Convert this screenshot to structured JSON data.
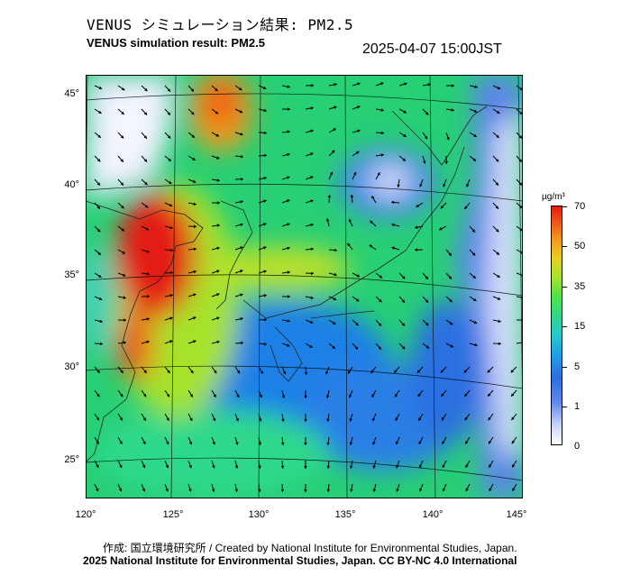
{
  "header": {
    "title_ja": "VENUS シミュレーション結果: PM2.5",
    "title_en": "VENUS simulation result: PM2.5",
    "datetime": "2025-04-07 15:00JST"
  },
  "map": {
    "x_ticks": [
      "120°",
      "125°",
      "130°",
      "135°",
      "140°",
      "145°"
    ],
    "y_ticks": [
      "45°",
      "40°",
      "35°",
      "30°",
      "25°"
    ]
  },
  "colorbar": {
    "unit": "µg/m³",
    "labels": [
      "70",
      "50",
      "35",
      "15",
      "5",
      "1",
      "0"
    ]
  },
  "footer": {
    "credit_line_1": "作成: 国立環境研究所 / Created by National Institute for Environmental Studies, Japan.",
    "credit_line_2": "2025 National Institute for Environmental Studies, Japan. CC BY-NC 4.0 International"
  }
}
